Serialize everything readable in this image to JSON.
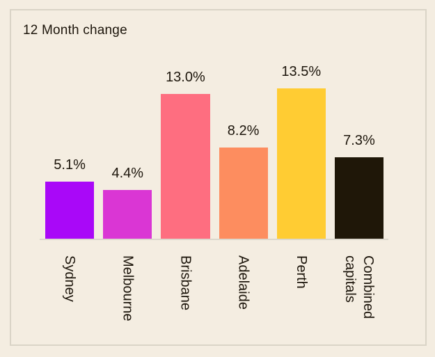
{
  "title": "12 Month change",
  "chart_data": {
    "type": "bar",
    "title": "12 Month change",
    "categories": [
      "Sydney",
      "Melbourne",
      "Brisbane",
      "Adelaide",
      "Perth",
      "Combined capitals"
    ],
    "values": [
      5.1,
      4.4,
      13.0,
      8.2,
      13.5,
      7.3
    ],
    "value_labels": [
      "5.1%",
      "4.4%",
      "13.0%",
      "8.2%",
      "13.5%",
      "7.3%"
    ],
    "bar_colors": [
      "#A908F8",
      "#DA36D4",
      "#FE6E80",
      "#FD8D5F",
      "#FFCC33",
      "#1F1708"
    ],
    "xlabel": "",
    "ylabel": "",
    "ylim": [
      0,
      13.5
    ],
    "grid": false,
    "legend": "none",
    "orientation": "vertical",
    "x_tick_rotation_deg": 90,
    "baseline_color": "#DCD7CC"
  },
  "colors": {
    "background": "#F4EDE1",
    "panel_border": "#DAD4C7",
    "text": "#1C150B"
  }
}
